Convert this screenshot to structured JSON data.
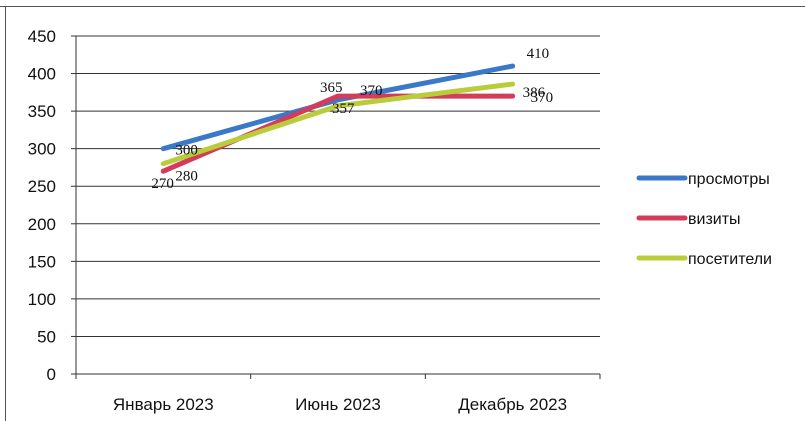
{
  "chart_data": {
    "type": "line",
    "categories": [
      "Январь 2023",
      "Июнь 2023",
      "Декабрь 2023"
    ],
    "series": [
      {
        "name": "просмотры",
        "values": [
          300,
          365,
          410
        ],
        "color": "#3a78c9"
      },
      {
        "name": "визиты",
        "values": [
          270,
          370,
          370
        ],
        "color": "#d33c5a"
      },
      {
        "name": "посетители",
        "values": [
          280,
          357,
          386
        ],
        "color": "#b9cc3a"
      }
    ],
    "ylim": [
      0,
      450
    ],
    "yticks": [
      0,
      50,
      100,
      150,
      200,
      250,
      300,
      350,
      400,
      450
    ],
    "grid": true,
    "legend_position": "right",
    "title": "",
    "xlabel": "",
    "ylabel": ""
  }
}
